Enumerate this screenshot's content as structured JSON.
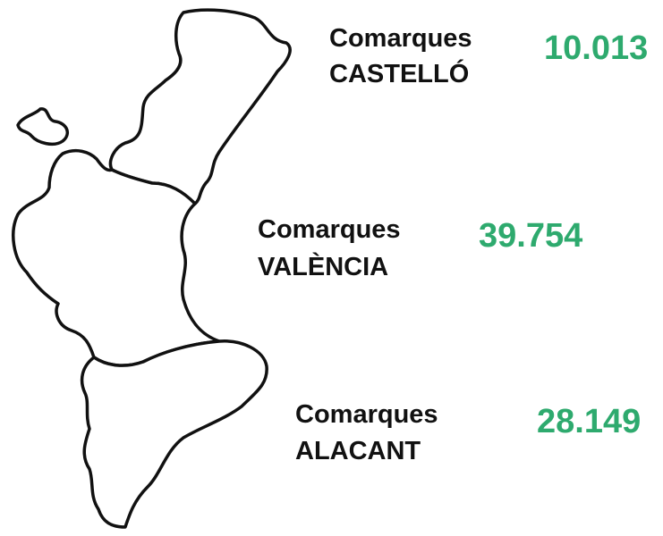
{
  "regions": [
    {
      "heading": "Comarques",
      "name": "CASTELLÓ",
      "value": "10.013"
    },
    {
      "heading": "Comarques",
      "name": "VALÈNCIA",
      "value": "39.754"
    },
    {
      "heading": "Comarques",
      "name": "ALACANT",
      "value": "28.149"
    }
  ]
}
